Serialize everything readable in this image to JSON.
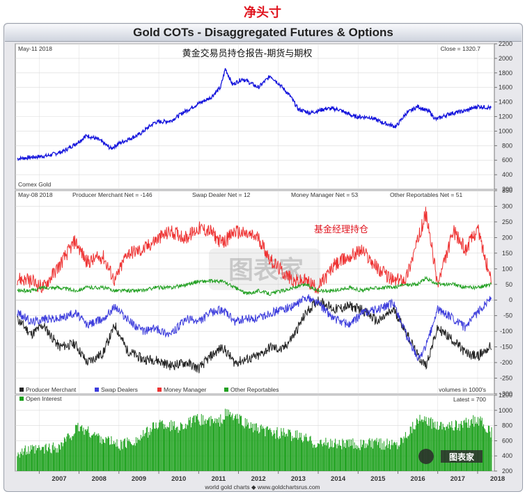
{
  "headline": "净头寸",
  "banner_title": "Gold COTs - Disaggregated Futures & Options",
  "footer_credit": "world gold charts ◆ www.goldchartsrus.com",
  "watermark_text": "图表家",
  "colors": {
    "price": "#1414dc",
    "producer": "#222222",
    "swap": "#3c3cdc",
    "money": "#ee3333",
    "other": "#22a022",
    "oi": "#19a019",
    "accent": "#e0141e"
  },
  "chart_data": [
    {
      "type": "line",
      "title": "黄金交易员持仓报告-期货与期权",
      "date_label": "May-11  2018",
      "close_label": "Close = 1320.7",
      "source_label": "Comex Gold",
      "x": [
        2006.45,
        2006.8,
        2007.2,
        2007.6,
        2007.9,
        2008.2,
        2008.5,
        2008.8,
        2009.0,
        2009.5,
        2009.9,
        2010.3,
        2010.6,
        2011.0,
        2011.3,
        2011.55,
        2011.67,
        2011.85,
        2012.1,
        2012.5,
        2012.8,
        2013.0,
        2013.3,
        2013.5,
        2013.8,
        2014.2,
        2014.5,
        2014.9,
        2015.3,
        2015.6,
        2015.95,
        2016.2,
        2016.5,
        2016.8,
        2016.95,
        2017.3,
        2017.7,
        2018.0,
        2018.35
      ],
      "series": [
        {
          "values": [
            620,
            640,
            660,
            720,
            820,
            940,
            880,
            760,
            830,
            950,
            1120,
            1140,
            1250,
            1380,
            1460,
            1600,
            1860,
            1640,
            1720,
            1600,
            1760,
            1660,
            1480,
            1300,
            1250,
            1310,
            1300,
            1200,
            1190,
            1120,
            1060,
            1240,
            1340,
            1260,
            1160,
            1240,
            1280,
            1340,
            1320
          ]
        }
      ],
      "ylim": [
        200,
        2200
      ],
      "yticks": [
        200,
        400,
        600,
        800,
        1000,
        1200,
        1400,
        1600,
        1800,
        2000,
        2200
      ]
    },
    {
      "type": "line",
      "date_label": "May-08  2018",
      "annotation": "基金经理持仓",
      "stat_labels": [
        "Producer Merchant Net = -146",
        "Swap Dealer Net = 12",
        "Money Manager Net = 53",
        "Other Reportables Net = 51"
      ],
      "units_label": "volumes in 1000's",
      "legend": [
        "Producer Merchant",
        "Swap Dealers",
        "Money Manager",
        "Other Reportables"
      ],
      "x": [
        2006.45,
        2006.8,
        2007.1,
        2007.5,
        2007.9,
        2008.2,
        2008.6,
        2008.9,
        2009.2,
        2009.6,
        2009.9,
        2010.3,
        2010.7,
        2011.0,
        2011.3,
        2011.6,
        2011.9,
        2012.2,
        2012.5,
        2012.8,
        2013.1,
        2013.4,
        2013.7,
        2014.0,
        2014.4,
        2014.8,
        2015.1,
        2015.5,
        2015.9,
        2016.2,
        2016.5,
        2016.7,
        2017.0,
        2017.4,
        2017.7,
        2018.0,
        2018.35
      ],
      "series": [
        {
          "name": "Producer Merchant",
          "values": [
            -60,
            -110,
            -80,
            -150,
            -140,
            -200,
            -170,
            -80,
            -160,
            -190,
            -190,
            -210,
            -200,
            -220,
            -180,
            -150,
            -200,
            -190,
            -180,
            -150,
            -160,
            -110,
            -40,
            0,
            -30,
            -20,
            -30,
            -70,
            -30,
            -100,
            -180,
            -210,
            -90,
            -130,
            -170,
            -180,
            -146
          ]
        },
        {
          "name": "Swap Dealers",
          "values": [
            -40,
            -70,
            -60,
            -60,
            -40,
            -80,
            -60,
            -20,
            -60,
            -100,
            -90,
            -110,
            -60,
            -70,
            -40,
            -30,
            -70,
            -60,
            -60,
            -40,
            -30,
            -20,
            10,
            -10,
            -60,
            -80,
            -40,
            -30,
            -10,
            -110,
            -190,
            -150,
            -30,
            -60,
            -90,
            -40,
            12
          ]
        },
        {
          "name": "Money Manager",
          "values": [
            70,
            60,
            40,
            110,
            190,
            120,
            140,
            60,
            150,
            160,
            190,
            220,
            200,
            230,
            220,
            180,
            220,
            210,
            200,
            130,
            90,
            60,
            60,
            40,
            110,
            140,
            160,
            100,
            60,
            70,
            190,
            280,
            50,
            220,
            160,
            230,
            53
          ]
        },
        {
          "name": "Other Reportables",
          "values": [
            30,
            30,
            40,
            40,
            30,
            40,
            40,
            30,
            30,
            30,
            40,
            40,
            50,
            60,
            60,
            60,
            40,
            20,
            30,
            20,
            30,
            40,
            50,
            30,
            30,
            40,
            30,
            40,
            40,
            50,
            50,
            70,
            50,
            50,
            40,
            40,
            51
          ]
        }
      ],
      "ylim": [
        -300,
        350
      ],
      "yticks": [
        -300,
        -250,
        -200,
        -150,
        -100,
        -50,
        0,
        50,
        100,
        150,
        200,
        250,
        300,
        350
      ]
    },
    {
      "type": "bar",
      "legend": [
        "Open Interest"
      ],
      "latest_label": "Latest = 700",
      "x": [
        2006.45,
        2007.0,
        2007.5,
        2008.0,
        2008.5,
        2009.0,
        2009.5,
        2010.0,
        2010.5,
        2011.0,
        2011.5,
        2011.7,
        2012.0,
        2012.5,
        2013.0,
        2013.5,
        2014.0,
        2014.5,
        2015.0,
        2015.5,
        2016.0,
        2016.5,
        2017.0,
        2017.5,
        2018.0,
        2018.35
      ],
      "values": [
        450,
        480,
        520,
        780,
        650,
        540,
        620,
        830,
        780,
        880,
        840,
        960,
        880,
        740,
        700,
        660,
        560,
        560,
        550,
        560,
        560,
        870,
        820,
        790,
        880,
        700
      ],
      "ylim": [
        200,
        1200
      ],
      "yticks": [
        200,
        400,
        600,
        800,
        1000,
        1200
      ]
    }
  ],
  "x_axis": {
    "labels": [
      "2007",
      "2008",
      "2009",
      "2010",
      "2011",
      "2012",
      "2013",
      "2014",
      "2015",
      "2016",
      "2017",
      "2018"
    ]
  }
}
